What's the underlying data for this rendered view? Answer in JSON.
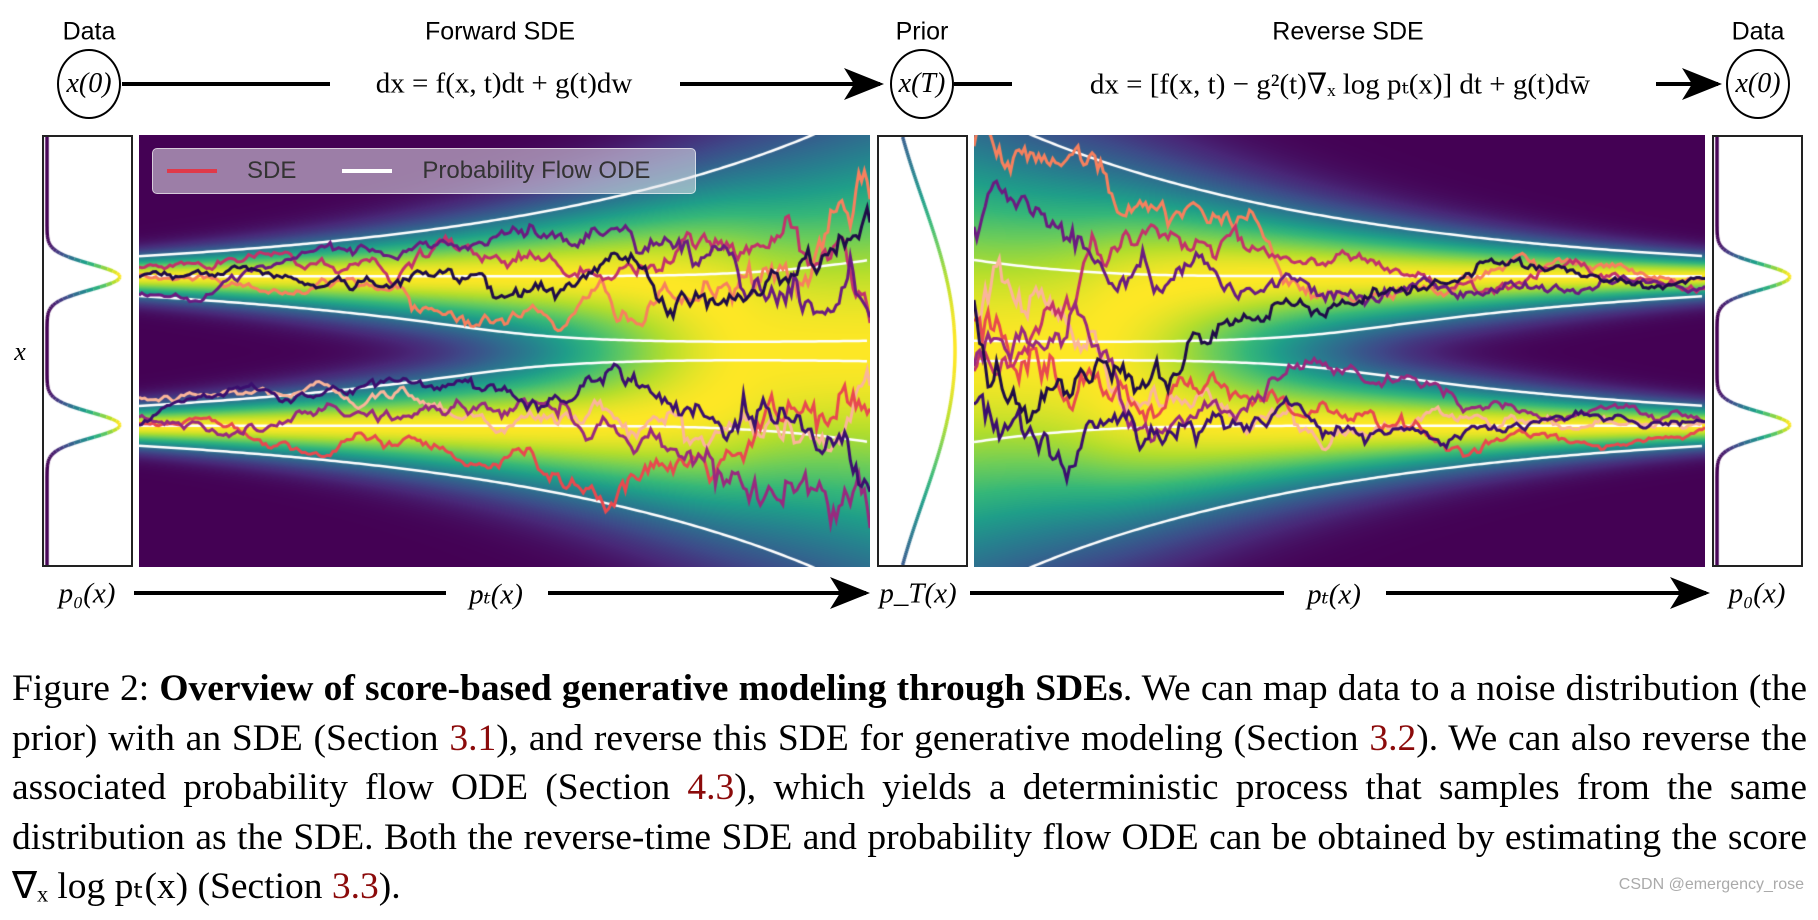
{
  "header": {
    "left_label": "Data",
    "forward_label": "Forward SDE",
    "prior_label": "Prior",
    "reverse_label": "Reverse SDE",
    "right_label": "Data",
    "forward_equation": "dx = f(x, t)dt + g(t)dw",
    "reverse_equation": "dx = [f(x, t) − g²(t)∇ₓ log pₜ(x)] dt + g(t)dw̄",
    "node_start": "x(0)",
    "node_prior": "x(T)",
    "node_end": "x(0)"
  },
  "axis": {
    "y_label": "x",
    "bottom": [
      "p₀(x)",
      "pₜ(x)",
      "p_T(x)",
      "pₜ(x)",
      "p₀(x)"
    ]
  },
  "legend": {
    "items": [
      {
        "label": "SDE",
        "color": "#e0394a"
      },
      {
        "label": "Probability Flow ODE",
        "color": "#ffffff"
      }
    ]
  },
  "colors": {
    "colormap": "viridis",
    "sde_paths": [
      "#fbb59a",
      "#f7805e",
      "#e8494f",
      "#c2336b",
      "#982a7f",
      "#6a1c81",
      "#3b0f6f",
      "#1f0c48"
    ],
    "ode_lines": "#ffffff",
    "reference_link": "#8b0a0a"
  },
  "caption": {
    "prefix": "Figure 2: ",
    "bold": "Overview of score-based generative modeling through SDEs",
    "t1": ".  We can map data to a noise distribution (the prior) with an SDE (Section ",
    "r1": "3.1",
    "t2": "), and reverse this SDE for generative modeling (Section ",
    "r2": "3.2",
    "t3": "). We can also reverse the associated probability flow ODE (Section ",
    "r3": "4.3",
    "t4": "), which yields a deterministic process that samples from the same distribution as the SDE. Both the reverse-time SDE and probability flow ODE can be obtained by estimating the score ∇ₓ log pₜ(x) (Section ",
    "r4": "3.3",
    "t5": ")."
  },
  "watermark": "CSDN @emergency_rose"
}
